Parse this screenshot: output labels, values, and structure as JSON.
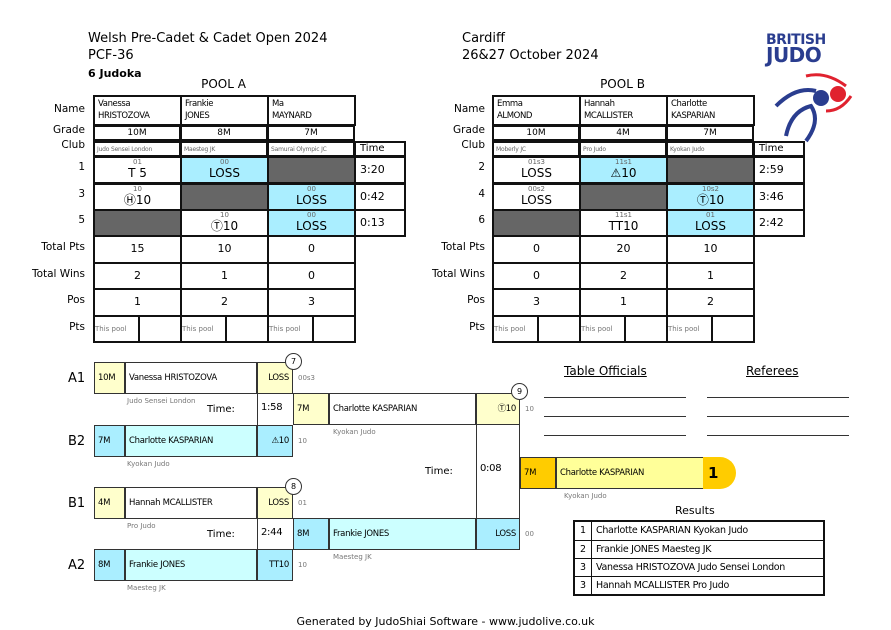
{
  "header": {
    "event": "Welsh Pre-Cadet & Cadet Open 2024",
    "category": "PCF-36",
    "count": "6 Judoka",
    "location": "Cardiff",
    "date": "26&27 October 2024",
    "logo_text": "BRITISH JUDO",
    "brand_color": "#2a3d8f",
    "accent_color": "#e0222f"
  },
  "row_labels": {
    "name": "Name",
    "grade": "Grade",
    "club": "Club",
    "time": "Time",
    "total_pts": "Total Pts",
    "total_wins": "Total Wins",
    "pos": "Pos",
    "pts": "Pts",
    "this_pool": "This pool"
  },
  "pools": [
    {
      "title": "POOL A",
      "match_numbers": [
        "1",
        "3",
        "5"
      ],
      "competitors": [
        {
          "first": "Vanessa",
          "last": "HRISTOZOVA",
          "grade": "10M",
          "club": "Judo Sensei London",
          "total_pts": "15",
          "total_wins": "2",
          "pos": "1"
        },
        {
          "first": "Frankie",
          "last": "JONES",
          "grade": "8M",
          "club": "Maesteg JK",
          "total_pts": "10",
          "total_wins": "1",
          "pos": "2"
        },
        {
          "first": "Ma",
          "last": "MAYNARD",
          "grade": "7M",
          "club": "Samurai Olympic JC",
          "total_pts": "0",
          "total_wins": "0",
          "pos": "3"
        }
      ],
      "results": [
        [
          {
            "score": "01",
            "result": "T 5"
          },
          {
            "score": "00",
            "result": "LOSS",
            "hl": true
          },
          null
        ],
        [
          {
            "score": "10",
            "result": "Ⓗ10"
          },
          null,
          {
            "score": "00",
            "result": "LOSS",
            "hl": true
          }
        ],
        [
          null,
          {
            "score": "10",
            "result": "Ⓣ10"
          },
          {
            "score": "00",
            "result": "LOSS",
            "hl": true
          }
        ]
      ],
      "times": [
        "3:20",
        "0:42",
        "0:13"
      ]
    },
    {
      "title": "POOL B",
      "match_numbers": [
        "2",
        "4",
        "6"
      ],
      "competitors": [
        {
          "first": "Emma",
          "last": "ALMOND",
          "grade": "10M",
          "club": "Moberly JC",
          "total_pts": "0",
          "total_wins": "0",
          "pos": "3"
        },
        {
          "first": "Hannah",
          "last": "MCALLISTER",
          "grade": "4M",
          "club": "Pro Judo",
          "total_pts": "20",
          "total_wins": "2",
          "pos": "1"
        },
        {
          "first": "Charlotte",
          "last": "KASPARIAN",
          "grade": "7M",
          "club": "Kyokan Judo",
          "total_pts": "10",
          "total_wins": "1",
          "pos": "2"
        }
      ],
      "results": [
        [
          {
            "score": "01s3",
            "result": "LOSS"
          },
          {
            "score": "11s1",
            "result": "⚠10",
            "hl": true
          },
          null
        ],
        [
          {
            "score": "00s2",
            "result": "LOSS"
          },
          null,
          {
            "score": "10s2",
            "result": "Ⓣ10",
            "hl": true
          }
        ],
        [
          null,
          {
            "score": "11s1",
            "result": "TT10"
          },
          {
            "score": "01",
            "result": "LOSS",
            "hl": true
          }
        ]
      ],
      "times": [
        "2:59",
        "3:46",
        "2:42"
      ]
    }
  ],
  "bracket": {
    "time_label": "Time:",
    "m7": {
      "number": "7",
      "time": "1:58",
      "top": {
        "seed": "A1",
        "grade": "10M",
        "name": "Vanessa HRISTOZOVA",
        "club": "Judo Sensei London",
        "result": "LOSS",
        "score": "00s3"
      },
      "bottom": {
        "seed": "B2",
        "grade": "7M",
        "name": "Charlotte KASPARIAN",
        "club": "Kyokan Judo",
        "result": "⚠10",
        "score": "10"
      }
    },
    "m8": {
      "number": "8",
      "time": "2:44",
      "top": {
        "seed": "B1",
        "grade": "4M",
        "name": "Hannah MCALLISTER",
        "club": "Pro Judo",
        "result": "LOSS",
        "score": "01"
      },
      "bottom": {
        "seed": "A2",
        "grade": "8M",
        "name": "Frankie JONES",
        "club": "Maesteg JK",
        "result": "TT10",
        "score": "10"
      }
    },
    "m9": {
      "number": "9",
      "time": "0:08",
      "top": {
        "grade": "7M",
        "name": "Charlotte KASPARIAN",
        "club": "Kyokan Judo",
        "result": "Ⓣ10",
        "score": "10"
      },
      "bottom": {
        "grade": "8M",
        "name": "Frankie JONES",
        "club": "Maesteg JK",
        "result": "LOSS",
        "score": "00"
      }
    },
    "winner": {
      "grade": "7M",
      "name": "Charlotte KASPARIAN",
      "club": "Kyokan Judo",
      "place": "1"
    }
  },
  "officials": {
    "table_officials": "Table Officials",
    "referees": "Referees"
  },
  "results": {
    "title": "Results",
    "rows": [
      {
        "place": "1",
        "text": "Charlotte KASPARIAN Kyokan Judo"
      },
      {
        "place": "2",
        "text": "Frankie JONES Maesteg JK"
      },
      {
        "place": "3",
        "text": "Vanessa HRISTOZOVA Judo Sensei London"
      },
      {
        "place": "3",
        "text": "Hannah MCALLISTER Pro Judo"
      }
    ]
  },
  "footer": "Generated by JudoShiai Software - www.judolive.co.uk"
}
